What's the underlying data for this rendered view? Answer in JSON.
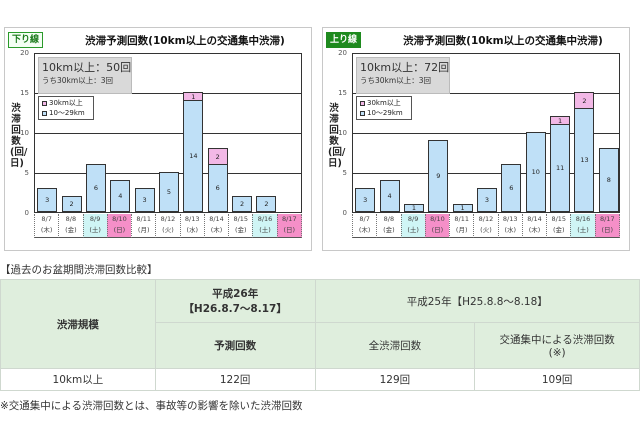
{
  "charts": {
    "down": {
      "badge": "下り線",
      "title": "渋滞予測回数(10km以上の交通集中渋滞)",
      "summary_main": "10km以上：50回",
      "summary_sub": "うち30km以上：3回",
      "legend": [
        "30km以上",
        "10～29km"
      ],
      "ylabel": "渋滞回数(回/日)",
      "yticks": [
        "20",
        "15",
        "10",
        "5",
        "0"
      ]
    },
    "up": {
      "badge": "上り線",
      "title": "渋滞予測回数(10km以上の交通集中渋滞)",
      "summary_main": "10km以上：72回",
      "summary_sub": "うち30km以上：3回",
      "legend": [
        "30km以上",
        "10～29km"
      ],
      "ylabel": "渋滞回数(回/日)",
      "yticks": [
        "20",
        "15",
        "10",
        "5",
        "0"
      ]
    },
    "dates": [
      {
        "date": "8/7",
        "dow": "(木)",
        "type": "weekday"
      },
      {
        "date": "8/8",
        "dow": "(金)",
        "type": "weekday"
      },
      {
        "date": "8/9",
        "dow": "(土)",
        "type": "sat"
      },
      {
        "date": "8/10",
        "dow": "(日)",
        "type": "sun"
      },
      {
        "date": "8/11",
        "dow": "(月)",
        "type": "weekday"
      },
      {
        "date": "8/12",
        "dow": "(火)",
        "type": "weekday"
      },
      {
        "date": "8/13",
        "dow": "(水)",
        "type": "weekday"
      },
      {
        "date": "8/14",
        "dow": "(木)",
        "type": "weekday"
      },
      {
        "date": "8/15",
        "dow": "(金)",
        "type": "weekday"
      },
      {
        "date": "8/16",
        "dow": "(土)",
        "type": "sat"
      },
      {
        "date": "8/17",
        "dow": "(日)",
        "type": "sun"
      }
    ]
  },
  "chart_data": [
    {
      "type": "bar",
      "stacked": true,
      "title": "渋滞予測回数(10km以上の交通集中渋滞)",
      "subtitle": "下り線",
      "categories": [
        "8/7(木)",
        "8/8(金)",
        "8/9(土)",
        "8/10(日)",
        "8/11(月)",
        "8/12(火)",
        "8/13(水)",
        "8/14(木)",
        "8/15(金)",
        "8/16(土)",
        "8/17(日)"
      ],
      "series": [
        {
          "name": "10～29km",
          "color": "#bfe0f7",
          "values": [
            3,
            2,
            6,
            4,
            3,
            5,
            14,
            6,
            2,
            2,
            0
          ]
        },
        {
          "name": "30km以上",
          "color": "#f2b8e6",
          "values": [
            0,
            0,
            0,
            0,
            0,
            0,
            1,
            2,
            0,
            0,
            0
          ]
        }
      ],
      "annotations": [
        "10km以上：50回",
        "うち30km以上：3回"
      ],
      "xlabel": "",
      "ylabel": "渋滞回数(回/日)",
      "ylim": [
        0,
        20
      ],
      "yticks": [
        0,
        5,
        10,
        15,
        20
      ],
      "grid": true,
      "legend_position": "upper-left"
    },
    {
      "type": "bar",
      "stacked": true,
      "title": "渋滞予測回数(10km以上の交通集中渋滞)",
      "subtitle": "上り線",
      "categories": [
        "8/7(木)",
        "8/8(金)",
        "8/9(土)",
        "8/10(日)",
        "8/11(月)",
        "8/12(火)",
        "8/13(水)",
        "8/14(木)",
        "8/15(金)",
        "8/16(土)",
        "8/17(日)"
      ],
      "series": [
        {
          "name": "10～29km",
          "color": "#bfe0f7",
          "values": [
            3,
            4,
            1,
            9,
            1,
            3,
            6,
            10,
            11,
            13,
            8
          ]
        },
        {
          "name": "30km以上",
          "color": "#f2b8e6",
          "values": [
            0,
            0,
            0,
            0,
            0,
            0,
            0,
            0,
            1,
            2,
            0
          ]
        }
      ],
      "annotations": [
        "10km以上：72回",
        "うち30km以上：3回"
      ],
      "xlabel": "",
      "ylabel": "渋滞回数(回/日)",
      "ylim": [
        0,
        20
      ],
      "yticks": [
        0,
        5,
        10,
        15,
        20
      ],
      "grid": true,
      "legend_position": "upper-left"
    }
  ],
  "table": {
    "title": "【過去のお盆期間渋滞回数比較】",
    "header_scale": "渋滞規模",
    "header_2014_year": "平成26年",
    "header_2014_range": "【H26.8.7～8.17】",
    "header_2014_sub": "予測回数",
    "header_2013": "平成25年【H25.8.8～8.18】",
    "header_2013_all": "全渋滞回数",
    "header_2013_traffic": "交通集中による渋滞回数",
    "header_2013_traffic_note": "(※)",
    "row_scale": "10km以上",
    "row_2014": "122回",
    "row_2013_all": "129回",
    "row_2013_traffic": "109回"
  },
  "footnote": "※交通集中による渋滞回数とは、事故等の影響を除いた渋滞回数"
}
